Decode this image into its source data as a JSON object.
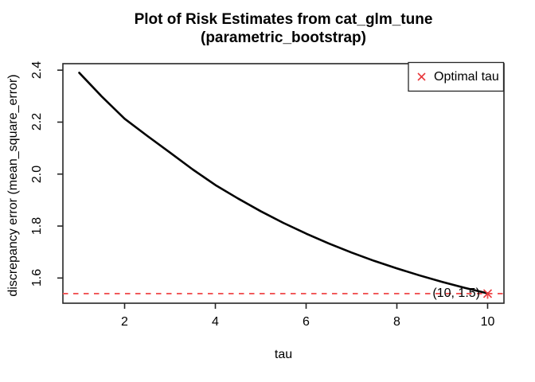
{
  "figure": {
    "title_line1": "Plot of Risk Estimates from cat_glm_tune",
    "title_line2": "(parametric_bootstrap)",
    "xlabel": "tau",
    "ylabel": "discrepancy error (mean_square_error)",
    "legend_label": "Optimal tau",
    "annotation_label": "(10, 1.5)"
  },
  "chart_data": {
    "type": "line",
    "title": "Plot of Risk Estimates from cat_glm_tune (parametric_bootstrap)",
    "xlabel": "tau",
    "ylabel": "discrepancy error (mean_square_error)",
    "xlim": [
      0.64,
      10.36
    ],
    "ylim": [
      1.503,
      2.425
    ],
    "x_ticks": [
      2,
      4,
      6,
      8,
      10
    ],
    "y_ticks": [
      1.6,
      1.8,
      2.0,
      2.2,
      2.4
    ],
    "y_tick_labels": [
      "1.6",
      "1.8",
      "2.0",
      "2.2",
      "2.4"
    ],
    "grid": false,
    "legend": {
      "position": "topright",
      "entries": [
        {
          "label": "Optimal tau",
          "marker": "x",
          "color": "#e8393c"
        }
      ]
    },
    "series": [
      {
        "name": "risk_estimate",
        "color": "#000000",
        "x": [
          1,
          1.5,
          2,
          2.5,
          3,
          3.5,
          4,
          4.5,
          5,
          5.5,
          6,
          6.5,
          7,
          7.5,
          8,
          8.5,
          9,
          9.5,
          10
        ],
        "y": [
          2.39,
          2.298,
          2.213,
          2.147,
          2.083,
          2.018,
          1.958,
          1.906,
          1.857,
          1.812,
          1.771,
          1.733,
          1.698,
          1.666,
          1.637,
          1.61,
          1.585,
          1.562,
          1.541
        ]
      }
    ],
    "optimal_point": {
      "x": 10,
      "y": 1.54,
      "label": "(10, 1.5)",
      "marker": "x",
      "color": "#e8393c"
    },
    "reference_lines": [
      {
        "type": "hline",
        "y": 1.54,
        "style": "dashed",
        "color": "#f05152"
      },
      {
        "type": "vline_segment",
        "x": 10,
        "y_from": 1.503,
        "y_to": 1.54,
        "style": "dashed",
        "color": "#f05152"
      }
    ],
    "colors": {
      "curve": "#000000",
      "marker_red": "#e8393c",
      "line_red": "#f05152",
      "axis": "#262626",
      "text": "#000000",
      "background": "#ffffff"
    }
  }
}
